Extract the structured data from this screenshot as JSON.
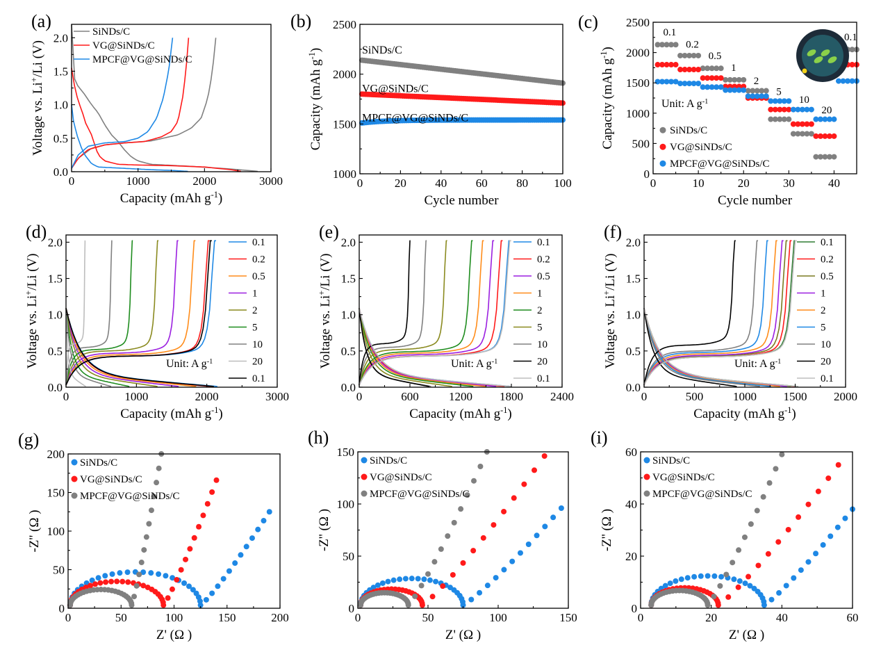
{
  "figure": {
    "colors": {
      "gray": "#808080",
      "red": "#ff1a1a",
      "blue": "#1e88e5",
      "orange": "#ff8c1a",
      "purple": "#9b1fe0",
      "olive": "#8a8a1f",
      "green": "#1e8c1e",
      "lightgray": "#bdbdbd",
      "black": "#000000",
      "darkblue": "#1565c0",
      "darkgreen": "#2e7d32",
      "darkolive": "#7a7a20"
    }
  },
  "chart_data": [
    {
      "panel": "a",
      "panel_label": "(a)",
      "type": "line",
      "xlabel": "Capacity (mAh g",
      "xlabel_sup": "-1",
      "xlabel_end": ")",
      "ylabel_pre": "Voltage vs. Li",
      "ylabel_sup": "+",
      "ylabel_post": "/Li (V)",
      "xlim": [
        0,
        3000
      ],
      "ylim": [
        0,
        2.2
      ],
      "xticks": [
        0,
        1000,
        2000,
        3000
      ],
      "yticks": [
        0.0,
        0.5,
        1.0,
        1.5,
        2.0
      ],
      "xtick_labels": [
        "0",
        "1000",
        "2000",
        "3000"
      ],
      "ytick_labels": [
        "0.0",
        "0.5",
        "1.0",
        "1.5",
        "2.0"
      ],
      "legend": [
        "SiNDs/C",
        "VG@SiNDs/C",
        "MPCF@VG@SiNDs/C"
      ],
      "legend_colors": [
        "gray",
        "red",
        "blue"
      ],
      "series": [
        {
          "name": "SiNDs/C",
          "color": "gray",
          "discharge": [
            [
              0,
              2.2
            ],
            [
              40,
              1.4
            ],
            [
              80,
              1.3
            ],
            [
              200,
              1.15
            ],
            [
              300,
              1.0
            ],
            [
              400,
              0.88
            ],
            [
              500,
              0.7
            ],
            [
              600,
              0.55
            ],
            [
              700,
              0.45
            ],
            [
              800,
              0.32
            ],
            [
              900,
              0.22
            ],
            [
              1000,
              0.16
            ],
            [
              1200,
              0.11
            ],
            [
              1800,
              0.08
            ],
            [
              2400,
              0.04
            ],
            [
              2800,
              0.005
            ]
          ],
          "charge": [
            [
              0,
              0.05
            ],
            [
              100,
              0.2
            ],
            [
              300,
              0.35
            ],
            [
              500,
              0.4
            ],
            [
              800,
              0.43
            ],
            [
              1200,
              0.46
            ],
            [
              1600,
              0.55
            ],
            [
              1800,
              0.65
            ],
            [
              1950,
              0.8
            ],
            [
              2050,
              1.1
            ],
            [
              2120,
              1.5
            ],
            [
              2170,
              2.0
            ]
          ]
        },
        {
          "name": "VG@SiNDs/C",
          "color": "red",
          "discharge": [
            [
              0,
              1.55
            ],
            [
              40,
              1.3
            ],
            [
              100,
              1.05
            ],
            [
              160,
              0.9
            ],
            [
              200,
              0.75
            ],
            [
              300,
              0.55
            ],
            [
              400,
              0.25
            ],
            [
              500,
              0.16
            ],
            [
              700,
              0.11
            ],
            [
              1000,
              0.1
            ],
            [
              1500,
              0.09
            ],
            [
              2000,
              0.07
            ],
            [
              2400,
              0.03
            ],
            [
              2550,
              0.005
            ]
          ],
          "charge": [
            [
              0,
              0.05
            ],
            [
              100,
              0.2
            ],
            [
              250,
              0.33
            ],
            [
              500,
              0.4
            ],
            [
              800,
              0.43
            ],
            [
              1100,
              0.45
            ],
            [
              1350,
              0.52
            ],
            [
              1500,
              0.6
            ],
            [
              1600,
              0.75
            ],
            [
              1670,
              1.1
            ],
            [
              1720,
              1.5
            ],
            [
              1760,
              2.0
            ]
          ]
        },
        {
          "name": "MPCF@VG@SiNDs/C",
          "color": "blue",
          "discharge": [
            [
              0,
              1.0
            ],
            [
              30,
              0.75
            ],
            [
              80,
              0.55
            ],
            [
              150,
              0.35
            ],
            [
              200,
              0.25
            ],
            [
              300,
              0.12
            ],
            [
              400,
              0.07
            ],
            [
              800,
              0.05
            ],
            [
              1200,
              0.03
            ],
            [
              1500,
              0.02
            ],
            [
              1750,
              0.005
            ]
          ],
          "charge": [
            [
              0,
              0.05
            ],
            [
              100,
              0.25
            ],
            [
              250,
              0.38
            ],
            [
              500,
              0.43
            ],
            [
              800,
              0.45
            ],
            [
              1000,
              0.5
            ],
            [
              1150,
              0.6
            ],
            [
              1280,
              0.8
            ],
            [
              1380,
              1.1
            ],
            [
              1460,
              1.5
            ],
            [
              1520,
              2.0
            ]
          ]
        }
      ]
    },
    {
      "panel": "b",
      "panel_label": "(b)",
      "type": "scatter",
      "xlabel": "Cycle number",
      "ylabel": "Capacity (mAh g",
      "ylabel_sup": "-1",
      "ylabel_end": ")",
      "xlim": [
        0,
        100
      ],
      "ylim": [
        1000,
        2500
      ],
      "xticks": [
        0,
        20,
        40,
        60,
        80,
        100
      ],
      "yticks": [
        1000,
        1500,
        2000,
        2500
      ],
      "xtick_labels": [
        "0",
        "20",
        "40",
        "60",
        "80",
        "100"
      ],
      "ytick_labels": [
        "1000",
        "1500",
        "2000",
        "2500"
      ],
      "annotations": [
        "SiNDs/C",
        "VG@SiNDs/C",
        "MPCF@VG@SiNDs/C"
      ],
      "series": [
        {
          "name": "SiNDs/C",
          "color": "gray",
          "start": 2140,
          "end": 1910
        },
        {
          "name": "VG@SiNDs/C",
          "color": "red",
          "start": 1800,
          "end": 1710
        },
        {
          "name": "MPCF@VG@SiNDs/C",
          "color": "blue",
          "start": 1510,
          "end": 1540
        }
      ]
    },
    {
      "panel": "c",
      "panel_label": "(c)",
      "type": "scatter",
      "xlabel": "Cycle number",
      "ylabel": "Capacity (mAh g",
      "ylabel_sup": "-1",
      "ylabel_end": ")",
      "xlim": [
        0,
        45
      ],
      "ylim": [
        0,
        2500
      ],
      "xticks": [
        0,
        10,
        20,
        30,
        40
      ],
      "yticks": [
        0,
        500,
        1000,
        1500,
        2000,
        2500
      ],
      "xtick_labels": [
        "0",
        "10",
        "20",
        "30",
        "40"
      ],
      "ytick_labels": [
        "0",
        "500",
        "1000",
        "1500",
        "2000",
        "2500"
      ],
      "unit_label": "Unit: A g",
      "unit_sup": "-1",
      "rate_labels": [
        "0.1",
        "0.2",
        "0.5",
        "1",
        "2",
        "5",
        "10",
        "20",
        "0.1"
      ],
      "legend": [
        "SiNDs/C",
        "VG@SiNDs/C",
        "MPCF@VG@SiNDs/C"
      ],
      "legend_colors": [
        "gray",
        "red",
        "blue"
      ],
      "series": [
        {
          "name": "SiNDs/C",
          "color": "gray",
          "levels": [
            2130,
            1950,
            1740,
            1550,
            1370,
            900,
            660,
            280,
            2050
          ]
        },
        {
          "name": "VG@SiNDs/C",
          "color": "red",
          "levels": [
            1800,
            1720,
            1580,
            1440,
            1250,
            1060,
            820,
            620,
            1800
          ]
        },
        {
          "name": "MPCF@VG@SiNDs/C",
          "color": "blue",
          "levels": [
            1520,
            1490,
            1430,
            1380,
            1280,
            1200,
            1060,
            900,
            1530
          ]
        }
      ]
    },
    {
      "panel": "d",
      "panel_label": "(d)",
      "type": "line",
      "xlabel": "Capacity (mAh g",
      "xlabel_sup": "-1",
      "xlabel_end": ")",
      "ylabel_pre": "Voltage vs. Li",
      "ylabel_sup": "+",
      "ylabel_post": "/Li (V)",
      "xlim": [
        0,
        3000
      ],
      "ylim": [
        0,
        2.1
      ],
      "xticks": [
        0,
        1000,
        2000,
        3000
      ],
      "yticks": [
        0.0,
        0.5,
        1.0,
        1.5,
        2.0
      ],
      "xtick_labels": [
        "0",
        "1000",
        "2000",
        "3000"
      ],
      "ytick_labels": [
        "0.0",
        "0.5",
        "1.0",
        "1.5",
        "2.0"
      ],
      "unit_label": "Unit: A g",
      "unit_sup": "-1",
      "legend": [
        "0.1",
        "0.2",
        "0.5",
        "1",
        "2",
        "5",
        "10",
        "20",
        "0.1"
      ],
      "legend_colors": [
        "blue",
        "red",
        "orange",
        "purple",
        "olive",
        "green",
        "gray",
        "lightgray",
        "black"
      ],
      "charge_end": [
        2110,
        2020,
        1820,
        1580,
        1300,
        940,
        650,
        270,
        2050
      ],
      "discharge_end": [
        2150,
        2050,
        1850,
        1600,
        1300,
        900,
        640,
        280,
        2100
      ],
      "plateau": [
        0.43,
        0.43,
        0.45,
        0.47,
        0.5,
        0.52,
        0.55,
        0.6,
        0.43
      ]
    },
    {
      "panel": "e",
      "panel_label": "(e)",
      "type": "line",
      "xlabel": "Capacity (mAh g",
      "xlabel_sup": "-1",
      "xlabel_end": ")",
      "ylabel_pre": "Voltage vs. Li",
      "ylabel_sup": "+",
      "ylabel_post": "/Li (V)",
      "xlim": [
        0,
        2400
      ],
      "ylim": [
        0,
        2.1
      ],
      "xticks": [
        0,
        600,
        1200,
        1800,
        2400
      ],
      "yticks": [
        0.0,
        0.5,
        1.0,
        1.5,
        2.0
      ],
      "xtick_labels": [
        "0",
        "600",
        "1200",
        "1800",
        "2400"
      ],
      "ytick_labels": [
        "0.0",
        "0.5",
        "1.0",
        "1.5",
        "2.0"
      ],
      "unit_label": "Unit: A g",
      "unit_sup": "-1",
      "legend": [
        "0.1",
        "0.2",
        "0.5",
        "1",
        "2",
        "5",
        "10",
        "20",
        "0.1"
      ],
      "legend_colors": [
        "blue",
        "red",
        "purple",
        "orange",
        "green",
        "olive",
        "gray",
        "black",
        "lightgray"
      ],
      "charge_end": [
        1770,
        1680,
        1580,
        1460,
        1330,
        1030,
        790,
        600,
        1780
      ],
      "discharge_end": [
        1800,
        1720,
        1620,
        1500,
        1350,
        1100,
        850,
        830,
        1800
      ],
      "plateau": [
        0.43,
        0.43,
        0.45,
        0.47,
        0.49,
        0.52,
        0.55,
        0.6,
        0.43
      ]
    },
    {
      "panel": "f",
      "panel_label": "(f)",
      "type": "line",
      "xlabel": "Capacity (mAh g",
      "xlabel_sup": "-1",
      "xlabel_end": ")",
      "ylabel_pre": "Voltage vs. Li",
      "ylabel_sup": "+",
      "ylabel_post": "/Li (V)",
      "xlim": [
        0,
        2000
      ],
      "ylim": [
        0,
        2.1
      ],
      "xticks": [
        0,
        500,
        1000,
        1500,
        2000
      ],
      "yticks": [
        0.0,
        0.5,
        1.0,
        1.5,
        2.0
      ],
      "xtick_labels": [
        "0",
        "500",
        "1000",
        "1500",
        "2000"
      ],
      "ytick_labels": [
        "0.0",
        "0.5",
        "1.0",
        "1.5",
        "2.0"
      ],
      "unit_label": "Unit: A g",
      "unit_sup": "-1",
      "legend": [
        "0.1",
        "0.2",
        "0.5",
        "1",
        "2",
        "5",
        "10",
        "20",
        "0.1"
      ],
      "legend_colors": [
        "darkgreen",
        "red",
        "darkolive",
        "purple",
        "orange",
        "blue",
        "gray",
        "black",
        "lightgray"
      ],
      "charge_end": [
        1490,
        1450,
        1410,
        1370,
        1310,
        1220,
        1120,
        900,
        1500
      ],
      "discharge_end": [
        1530,
        1500,
        1460,
        1420,
        1350,
        1260,
        1150,
        920,
        1530
      ],
      "plateau": [
        0.42,
        0.42,
        0.43,
        0.44,
        0.46,
        0.48,
        0.5,
        0.58,
        0.42
      ]
    },
    {
      "panel": "g",
      "panel_label": "(g)",
      "type": "scatter",
      "xlabel": "Z' (Ω )",
      "ylabel": "-Z'' (Ω )",
      "xlim": [
        0,
        200
      ],
      "ylim": [
        0,
        200
      ],
      "xticks": [
        0,
        50,
        100,
        150,
        200
      ],
      "yticks": [
        0,
        50,
        100,
        150,
        200
      ],
      "xtick_labels": [
        "0",
        "50",
        "100",
        "150",
        "200"
      ],
      "ytick_labels": [
        "0",
        "50",
        "100",
        "150",
        "200"
      ],
      "legend": [
        "SiNDs/C",
        "VG@SiNDs/C",
        "MPCF@VG@SiNDs/C"
      ],
      "legend_colors": [
        "blue",
        "red",
        "gray"
      ],
      "series": [
        {
          "name": "SiNDs/C",
          "color": "blue",
          "r0": 2,
          "rct": 125,
          "ymax": 125,
          "xtail": 190
        },
        {
          "name": "VG@SiNDs/C",
          "color": "red",
          "r0": 2,
          "rct": 90,
          "ymax": 166,
          "xtail": 140
        },
        {
          "name": "MPCF@VG@SiNDs/C",
          "color": "gray",
          "r0": 2,
          "rct": 60,
          "ymax": 200,
          "xtail": 88
        }
      ]
    },
    {
      "panel": "h",
      "panel_label": "(h)",
      "type": "scatter",
      "xlabel": "Z' (Ω )",
      "ylabel": "-Z'' (Ω )",
      "xlim": [
        0,
        150
      ],
      "ylim": [
        0,
        150
      ],
      "xticks": [
        0,
        50,
        100,
        150
      ],
      "yticks": [
        0,
        50,
        100,
        150
      ],
      "xtick_labels": [
        "0",
        "50",
        "100",
        "150"
      ],
      "ytick_labels": [
        "0",
        "50",
        "100",
        "150"
      ],
      "legend": [
        "SiNDs/C",
        "VG@SiNDs/C",
        "MPCF@VG@SiNDs/C"
      ],
      "legend_colors": [
        "blue",
        "red",
        "gray"
      ],
      "series": [
        {
          "name": "SiNDs/C",
          "color": "blue",
          "r0": 2,
          "rct": 75,
          "ymax": 96,
          "xtail": 145
        },
        {
          "name": "VG@SiNDs/C",
          "color": "red",
          "r0": 2,
          "rct": 46,
          "ymax": 146,
          "xtail": 133
        },
        {
          "name": "MPCF@VG@SiNDs/C",
          "color": "gray",
          "r0": 2,
          "rct": 36,
          "ymax": 150,
          "xtail": 92
        }
      ]
    },
    {
      "panel": "i",
      "panel_label": "(i)",
      "type": "scatter",
      "xlabel": "Z' (Ω )",
      "ylabel": "-Z'' (Ω )",
      "xlim": [
        0,
        60
      ],
      "ylim": [
        0,
        60
      ],
      "xticks": [
        0,
        20,
        40,
        60
      ],
      "yticks": [
        0,
        20,
        40,
        60
      ],
      "xtick_labels": [
        "0",
        "20",
        "40",
        "60"
      ],
      "ytick_labels": [
        "0",
        "20",
        "40",
        "60"
      ],
      "legend": [
        "SiNDs/C",
        "VG@SiNDs/C",
        "MPCF@VG@SiNDs/C"
      ],
      "legend_colors": [
        "blue",
        "red",
        "gray"
      ],
      "series": [
        {
          "name": "SiNDs/C",
          "color": "blue",
          "r0": 3,
          "rct": 35,
          "ymax": 38,
          "xtail": 60
        },
        {
          "name": "VG@SiNDs/C",
          "color": "red",
          "r0": 3,
          "rct": 22,
          "ymax": 55,
          "xtail": 56
        },
        {
          "name": "MPCF@VG@SiNDs/C",
          "color": "gray",
          "r0": 3,
          "rct": 19,
          "ymax": 59,
          "xtail": 40
        }
      ]
    }
  ]
}
